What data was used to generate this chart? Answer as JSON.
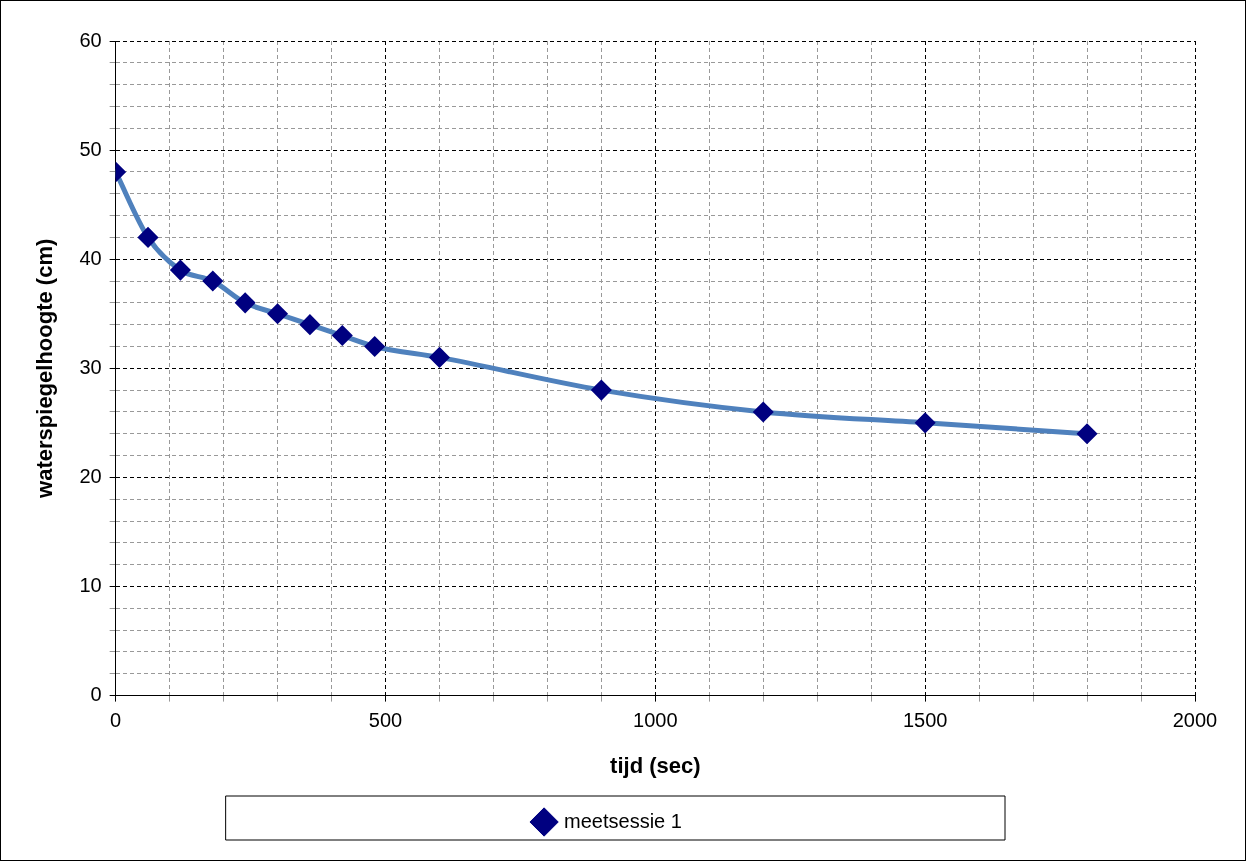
{
  "chart_data": {
    "type": "line",
    "xlabel": "tijd (sec)",
    "ylabel": "waterspiegelhoogte (cm)",
    "x": [
      0,
      60,
      120,
      180,
      240,
      300,
      360,
      420,
      480,
      600,
      900,
      1200,
      1500,
      1800
    ],
    "series": [
      {
        "name": "meetsessie 1",
        "color": "#4f81bd",
        "values": [
          48,
          42,
          39,
          38,
          36,
          35,
          34,
          33,
          32,
          31,
          28,
          26,
          25,
          24
        ]
      }
    ],
    "xlim": [
      0,
      2000
    ],
    "xticks": [
      0,
      {
        "value": 100,
        "label": null
      },
      {
        "value": 200,
        "label": null
      },
      {
        "value": 300,
        "label": null
      },
      {
        "value": 400,
        "label": null
      },
      500,
      {
        "value": 600,
        "label": null
      },
      {
        "value": 700,
        "label": null
      },
      {
        "value": 800,
        "label": null
      },
      {
        "value": 900,
        "label": null
      },
      1000,
      {
        "value": 1100,
        "label": null
      },
      {
        "value": 1200,
        "label": null
      },
      {
        "value": 1300,
        "label": null
      },
      {
        "value": 1400,
        "label": null
      },
      1500,
      {
        "value": 1600,
        "label": null
      },
      {
        "value": 1700,
        "label": null
      },
      {
        "value": 1800,
        "label": null
      },
      {
        "value": 1900,
        "label": null
      },
      2000
    ],
    "ylim": [
      0,
      60
    ],
    "yticks": [
      0,
      {
        "value": 2,
        "label": null
      },
      {
        "value": 4,
        "label": null
      },
      {
        "value": 6,
        "label": null
      },
      {
        "value": 8,
        "label": null
      },
      10,
      {
        "value": 12,
        "label": null
      },
      {
        "value": 14,
        "label": null
      },
      {
        "value": 16,
        "label": null
      },
      {
        "value": 18,
        "label": null
      },
      20,
      {
        "value": 22,
        "label": null
      },
      {
        "value": 24,
        "label": null
      },
      {
        "value": 26,
        "label": null
      },
      {
        "value": 28,
        "label": null
      },
      30,
      {
        "value": 32,
        "label": null
      },
      {
        "value": 34,
        "label": null
      },
      {
        "value": 36,
        "label": null
      },
      {
        "value": 38,
        "label": null
      },
      40,
      {
        "value": 42,
        "label": null
      },
      {
        "value": 44,
        "label": null
      },
      {
        "value": 46,
        "label": null
      },
      {
        "value": 48,
        "label": null
      },
      50,
      {
        "value": 52,
        "label": null
      },
      {
        "value": 54,
        "label": null
      },
      {
        "value": 56,
        "label": null
      },
      {
        "value": 58,
        "label": null
      },
      60
    ],
    "grid": true,
    "legend": "bottom",
    "marker": "diamond",
    "line_style": "solid"
  }
}
